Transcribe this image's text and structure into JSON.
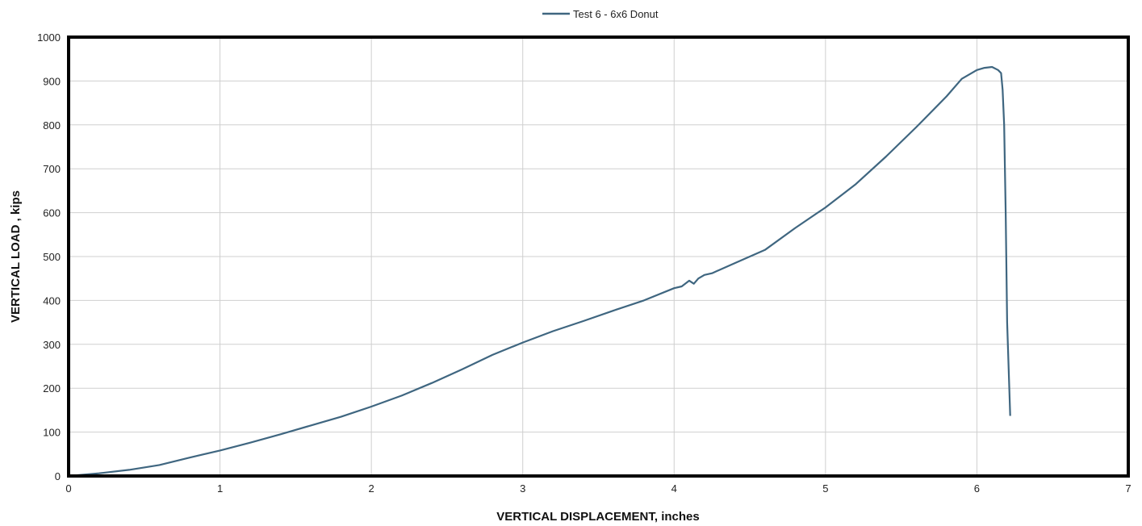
{
  "chart_data": {
    "type": "line",
    "xlabel": "VERTICAL DISPLACEMENT, inches",
    "ylabel": "VERTICAL LOAD , kips",
    "xlim": [
      0,
      7
    ],
    "ylim": [
      0,
      1000
    ],
    "xticks": [
      "0",
      "1",
      "2",
      "3",
      "4",
      "5",
      "6",
      "7"
    ],
    "yticks": [
      "0",
      "100",
      "200",
      "300",
      "400",
      "500",
      "600",
      "700",
      "800",
      "900",
      "1000"
    ],
    "grid": true,
    "legend_position": "top-center",
    "series": [
      {
        "name": "Test 6 - 6x6 Donut",
        "color": "#3f6680",
        "x": [
          0,
          0.2,
          0.4,
          0.6,
          0.8,
          1.0,
          1.2,
          1.4,
          1.6,
          1.8,
          2.0,
          2.2,
          2.4,
          2.6,
          2.8,
          3.0,
          3.2,
          3.4,
          3.6,
          3.8,
          4.0,
          4.05,
          4.1,
          4.13,
          4.16,
          4.2,
          4.25,
          4.4,
          4.6,
          4.8,
          5.0,
          5.2,
          5.4,
          5.6,
          5.8,
          5.9,
          6.0,
          6.05,
          6.1,
          6.14,
          6.16,
          6.17,
          6.18,
          6.19,
          6.2,
          6.22
        ],
        "y": [
          0,
          6,
          14,
          25,
          42,
          58,
          76,
          95,
          115,
          135,
          158,
          183,
          212,
          243,
          276,
          304,
          330,
          353,
          377,
          400,
          428,
          432,
          445,
          438,
          450,
          458,
          462,
          485,
          515,
          565,
          612,
          665,
          728,
          795,
          865,
          905,
          925,
          930,
          932,
          925,
          918,
          880,
          800,
          600,
          350,
          137
        ]
      }
    ]
  }
}
